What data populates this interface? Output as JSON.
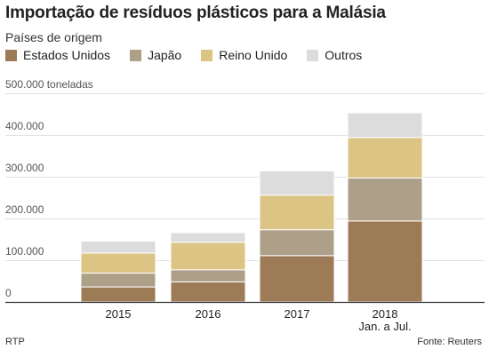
{
  "chart_data": {
    "type": "bar",
    "stacked": true,
    "title": "Importação de resíduos plásticos para a Malásia",
    "legend_title": "Países de origem",
    "categories": [
      "2015",
      "2016",
      "2017",
      "2018"
    ],
    "category_sublabels": [
      "",
      "",
      "",
      "Jan. a Jul."
    ],
    "series": [
      {
        "name": "Estados Unidos",
        "color": "#9d7b57",
        "values": [
          36000,
          48000,
          111000,
          194000
        ]
      },
      {
        "name": "Japão",
        "color": "#aea088",
        "values": [
          33000,
          29000,
          62000,
          103000
        ]
      },
      {
        "name": "Reino Unido",
        "color": "#dcc485",
        "values": [
          48000,
          66000,
          83000,
          97000
        ]
      },
      {
        "name": "Outros",
        "color": "#dcdcdc",
        "values": [
          29000,
          23000,
          58000,
          59000
        ]
      }
    ],
    "ylim": [
      0,
      500000
    ],
    "yticks": [
      "0",
      "100.000",
      "200.000",
      "300.000",
      "400.000",
      "500.000 toneladas"
    ],
    "ytick_values": [
      0,
      100000,
      200000,
      300000,
      400000,
      500000
    ],
    "grid": true,
    "legend_position": "top-left"
  },
  "footer": {
    "left": "RTP",
    "right": "Fonte: Reuters"
  }
}
